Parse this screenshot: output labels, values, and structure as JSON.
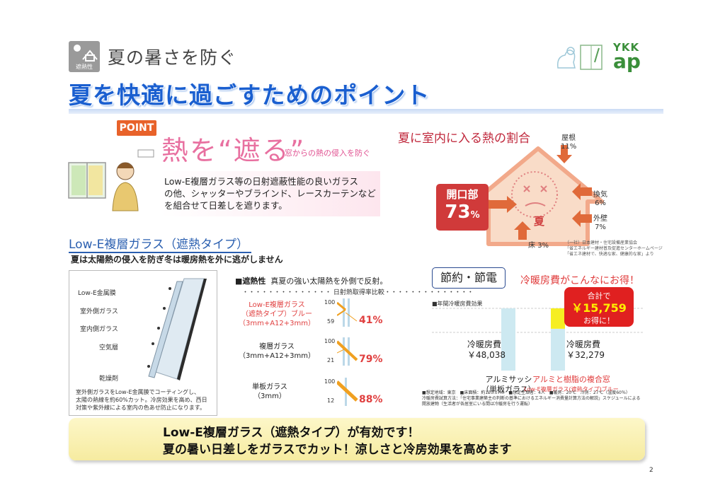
{
  "header": {
    "category_icon_label": "遮熱性",
    "category_title": "夏の暑さを防ぐ",
    "main_title": "夏を快適に過ごすためのポイント",
    "logo_text_top": "YKK",
    "logo_text_bottom": "ap"
  },
  "point": {
    "tag": "POINT",
    "title": "熱を“遮る”",
    "subtitle": "窓からの熱の侵入を防ぐ",
    "body_lines": [
      "Low-E複層ガラス等の日射遮蔽性能の良いガラス",
      "の他、シャッターやブラインド、レースカーテンなど",
      "を組合せて日差しを遮ります。"
    ]
  },
  "heat_share": {
    "title": "夏に室内に入る熱の割合",
    "roof_label": "屋根",
    "roof_pct": "11%",
    "opening_label": "開口部",
    "opening_pct": "73",
    "opening_unit": "%",
    "vent_label": "換気",
    "vent_pct": "6%",
    "wall_label": "外壁",
    "wall_pct": "7%",
    "floor_label": "床",
    "floor_pct": "3%",
    "summer_label": "夏",
    "source_lines": [
      "（一社）日本建材・住宅設備産業協会",
      "「省エネルギー建材普及促進センターホームページ",
      "「省エネ建材で、快適な家、健康的な家」より"
    ]
  },
  "lowe": {
    "title": "Low-E複層ガラス（遮熱タイプ）",
    "subtitle": "夏は太陽熱の侵入を防ぎ冬は暖房熱を外に逃がしません",
    "diagram_labels": [
      "Low-E金属膜",
      "室外側ガラス",
      "室内側ガラス",
      "空気層",
      "乾燥剤"
    ],
    "diagram_note_lines": [
      "室外側ガラスをLow-E金属膜でコーティングし、",
      "太陽の熱線を約60%カット。冷房効果を高め、西日",
      "対策や紫外線による室内の色あせ防止になります。"
    ],
    "shade_head_bold": "■遮熱性",
    "shade_head_rest": "真夏の強い太陽熱を外側で反射。",
    "shade_axis": "・・・・・・・・・・・・・・ 日射熱取得率比較・・・・・・・・・・・・・・",
    "glasses": [
      {
        "name1": "Low-E複層ガラス",
        "name2": "（遮熱タイプ）ブルー",
        "name3": "（3mm+A12+3mm）",
        "top": "100",
        "bottom": "59",
        "pct": "41%"
      },
      {
        "name1": "複層ガラス",
        "name2": "（3mm+A12+3mm）",
        "name3": "",
        "top": "100",
        "bottom": "21",
        "pct": "79%"
      },
      {
        "name1": "単板ガラス",
        "name2": "（3mm）",
        "name3": "",
        "top": "100",
        "bottom": "12",
        "pct": "88%"
      }
    ]
  },
  "savings": {
    "box_label": "節約・節電",
    "head": "冷暖房費がこんなにお得！",
    "yearly_label": "■年間冷暖房費効果",
    "callout_l1": "合計で",
    "callout_l2": "￥15,759",
    "callout_l3": "お得に！",
    "left_cost_label": "冷暖房費",
    "left_cost_value": "￥48,038",
    "right_cost_label": "冷暖房費",
    "right_cost_value": "￥32,279",
    "left_frame_1": "アルミサッシ",
    "left_frame_2": "（単板ガラス）",
    "right_frame_1": "アルミと樹脂の複合窓",
    "right_frame_2": "Low-E複層ガラス(遮熱タイプ)ブルー",
    "foot_lines": [
      "■想定地域：東京　■床面積：約120.07㎡　■想定生活者：4人　■暖房：20℃　冷房：27℃（湿度60％）",
      "冷暖房費試算方法：「住宅事業建築主の判断の基準におけるエネルギー消費量計算方法の解説」スケジュールによる",
      "開放建物（生活者が各居室にいる間は冷暖房を行う運転）"
    ]
  },
  "banner": {
    "line1": "Low-E複層ガラス（遮熱タイプ）が有効です！",
    "line2": "夏の暑い日差しをガラスでカット！涼しさと冷房効果を高めます"
  },
  "page_number": "2",
  "colors": {
    "title_blue": "#1a5fd0",
    "accent_red": "#d03a3a",
    "pink": "#e870a0",
    "bar_cyan": "#cde9f1",
    "bar_yellow": "#f6ee22"
  },
  "chart_data": {
    "type": "bar",
    "categories": [
      "アルミサッシ（単板ガラス）",
      "アルミと樹脂の複合窓 Low-E複層ガラス(遮熱タイプ)ブルー"
    ],
    "values": [
      48038,
      32279
    ],
    "ylabel": "",
    "title": "■年間冷暖房費効果"
  }
}
